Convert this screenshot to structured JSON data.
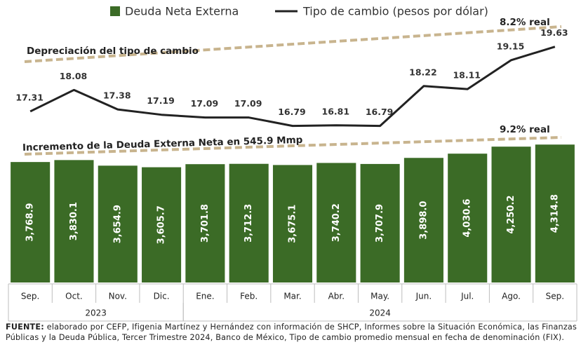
{
  "chart_data": {
    "type": "bar",
    "legend": "top",
    "categories": [
      "Sep.",
      "Oct.",
      "Nov.",
      "Dic.",
      "Ene.",
      "Feb.",
      "Mar.",
      "Abr.",
      "May.",
      "Jun.",
      "Jul.",
      "Ago.",
      "Sep."
    ],
    "years": [
      "2023",
      "2023",
      "2023",
      "2023",
      "2024",
      "2024",
      "2024",
      "2024",
      "2024",
      "2024",
      "2024",
      "2024",
      "2024"
    ],
    "ylim": [
      0,
      5000
    ],
    "y2lim": [
      16,
      20
    ],
    "series": [
      {
        "name": "Deuda Neta Externa",
        "type": "bar",
        "color": "#3b6b26",
        "values": [
          3768.9,
          3830.1,
          3654.9,
          3605.7,
          3701.8,
          3712.3,
          3675.1,
          3740.2,
          3707.9,
          3898.0,
          4030.6,
          4250.2,
          4314.8
        ],
        "value_labels": [
          "3,768.9",
          "3,830.1",
          "3,654.9",
          "3,605.7",
          "3,701.8",
          "3,712.3",
          "3,675.1",
          "3,740.2",
          "3,707.9",
          "3,898.0",
          "4,030.6",
          "4,250.2",
          "4,314.8"
        ]
      },
      {
        "name": "Tipo de cambio (pesos por dólar)",
        "type": "line",
        "axis": "y2",
        "color": "#222222",
        "values": [
          17.31,
          18.08,
          17.38,
          17.19,
          17.09,
          17.09,
          16.79,
          16.81,
          16.79,
          18.22,
          18.11,
          19.15,
          19.63
        ]
      }
    ],
    "annotations": [
      {
        "text": "Depreciación del tipo de cambio"
      },
      {
        "text": "8.2% real"
      },
      {
        "text": "Incremento de la Deuda Externa Neta en 545.9 Mmp"
      },
      {
        "text": "9.2% real"
      }
    ],
    "source_label": "FUENTE:",
    "source_text": "elaborado por CEFP, Ifigenia Martínez y Hernández con información de SHCP, Informes sobre la Situación Económica, las Finanzas Públicas y la Deuda Pública, Tercer Trimestre 2024, Banco de México, Tipo de cambio promedio mensual en fecha de denominación (FIX)."
  }
}
